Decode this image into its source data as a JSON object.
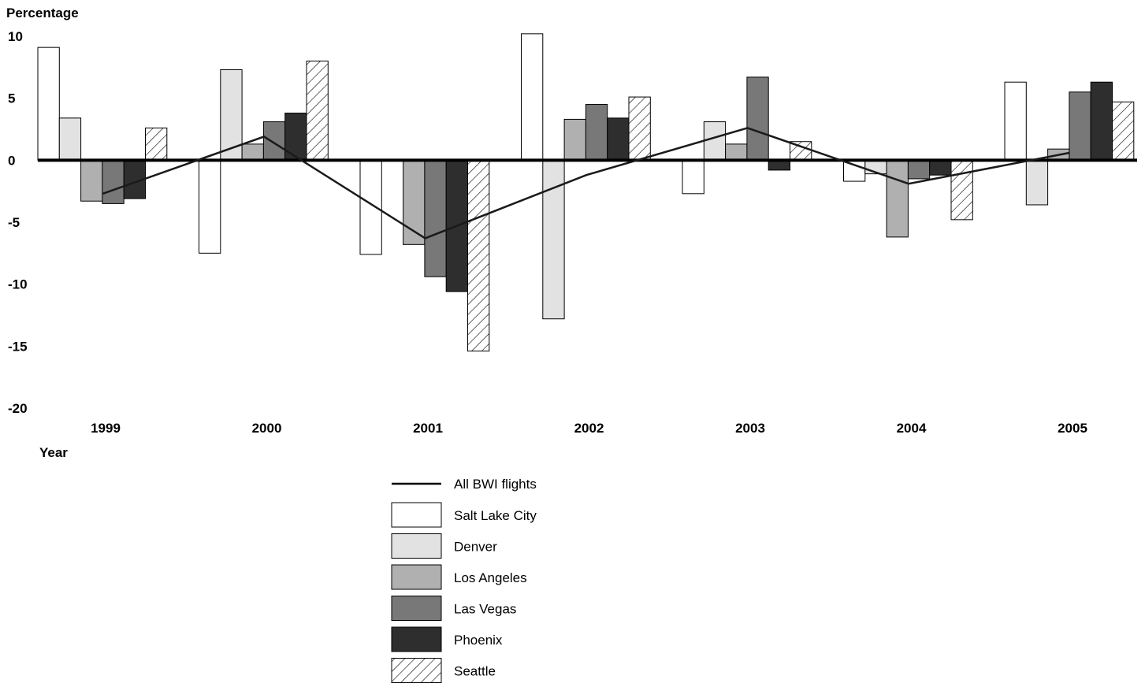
{
  "chart_data": {
    "type": "bar",
    "ylabel": "Percentage",
    "xlabel": "Year",
    "ylim": [
      -20,
      10
    ],
    "yticks": [
      "10",
      "5",
      "0",
      "-5",
      "-10",
      "-15",
      "-20"
    ],
    "categories": [
      "1999",
      "2000",
      "2001",
      "2002",
      "2003",
      "2004",
      "2005"
    ],
    "series": [
      {
        "name": "Salt Lake City",
        "fill": "#ffffff",
        "pattern": "none",
        "values": [
          9.1,
          -7.5,
          -7.6,
          10.2,
          -2.7,
          -1.7,
          6.3
        ]
      },
      {
        "name": "Denver",
        "fill": "#e2e2e2",
        "pattern": "none",
        "values": [
          3.4,
          7.3,
          0.0,
          -12.8,
          3.1,
          -1.1,
          -3.6
        ]
      },
      {
        "name": "Los Angeles",
        "fill": "#b0b0b0",
        "pattern": "none",
        "values": [
          -3.3,
          1.3,
          -6.8,
          3.3,
          1.3,
          -6.2,
          0.9
        ]
      },
      {
        "name": "Las Vegas",
        "fill": "#787878",
        "pattern": "none",
        "values": [
          -3.5,
          3.1,
          -9.4,
          4.5,
          6.7,
          -1.5,
          5.5
        ]
      },
      {
        "name": "Phoenix",
        "fill": "#2e2e2e",
        "pattern": "none",
        "values": [
          -3.1,
          3.8,
          -10.6,
          3.4,
          -0.8,
          -1.2,
          6.3
        ]
      },
      {
        "name": "Seattle",
        "fill": "#ffffff",
        "pattern": "hatch",
        "values": [
          2.6,
          8.0,
          -15.4,
          5.1,
          1.5,
          -4.8,
          4.7
        ]
      }
    ],
    "line_series": {
      "name": "All BWI flights",
      "values": [
        -2.7,
        1.9,
        -6.3,
        -1.2,
        2.6,
        -1.9,
        0.6
      ]
    },
    "grid": false,
    "legend_position": "bottom-center"
  }
}
